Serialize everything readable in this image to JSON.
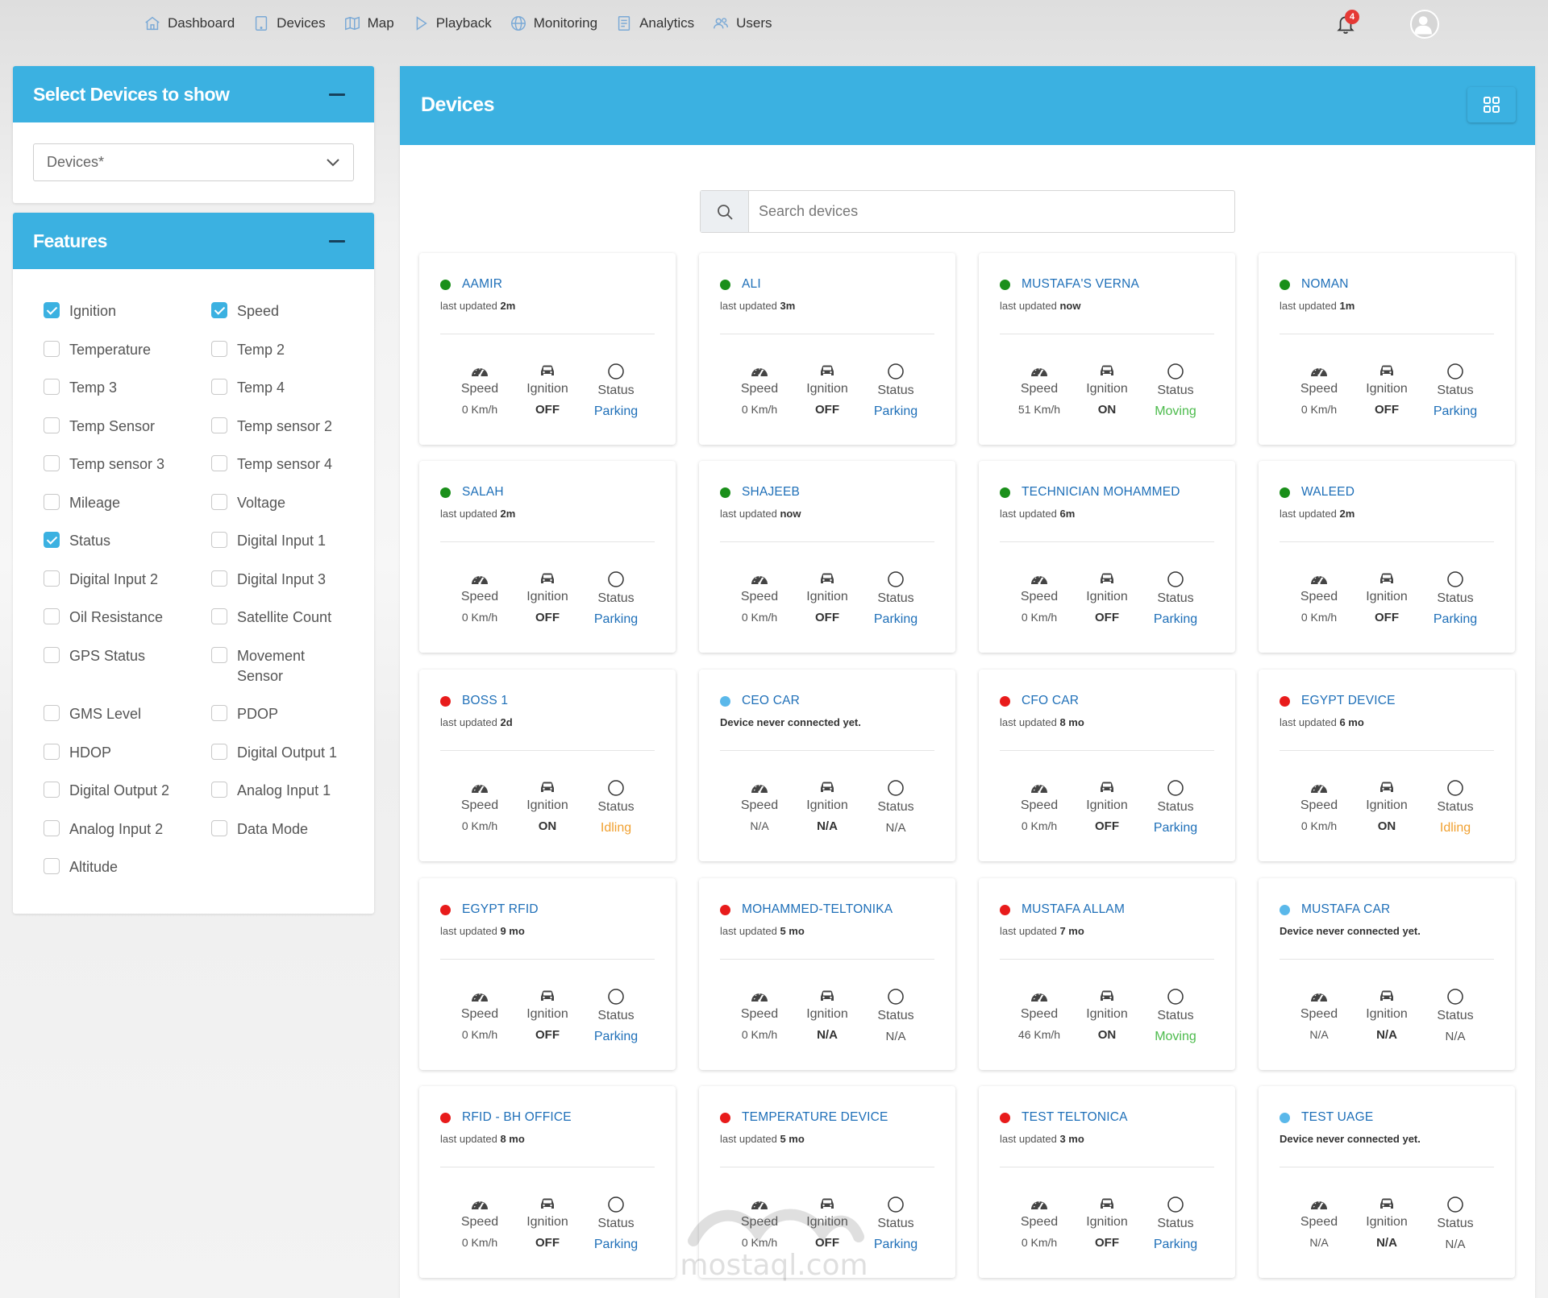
{
  "nav": {
    "items": [
      {
        "label": "Dashboard",
        "icon": "home-icon"
      },
      {
        "label": "Devices",
        "icon": "tablet-icon"
      },
      {
        "label": "Map",
        "icon": "map-icon"
      },
      {
        "label": "Playback",
        "icon": "play-icon"
      },
      {
        "label": "Monitoring",
        "icon": "globe-icon"
      },
      {
        "label": "Analytics",
        "icon": "document-icon"
      },
      {
        "label": "Users",
        "icon": "users-icon"
      }
    ],
    "notification_count": "4"
  },
  "select_panel": {
    "title": "Select Devices to show",
    "dropdown_value": "Devices*"
  },
  "features_panel": {
    "title": "Features",
    "items": [
      {
        "label": "Ignition",
        "checked": true
      },
      {
        "label": "Speed",
        "checked": true
      },
      {
        "label": "Temperature",
        "checked": false
      },
      {
        "label": "Temp 2",
        "checked": false
      },
      {
        "label": "Temp 3",
        "checked": false
      },
      {
        "label": "Temp 4",
        "checked": false
      },
      {
        "label": "Temp Sensor",
        "checked": false
      },
      {
        "label": "Temp sensor 2",
        "checked": false
      },
      {
        "label": "Temp sensor 3",
        "checked": false
      },
      {
        "label": "Temp sensor 4",
        "checked": false
      },
      {
        "label": "Mileage",
        "checked": false
      },
      {
        "label": "Voltage",
        "checked": false
      },
      {
        "label": "Status",
        "checked": true
      },
      {
        "label": "Digital Input 1",
        "checked": false
      },
      {
        "label": "Digital Input 2",
        "checked": false
      },
      {
        "label": "Digital Input 3",
        "checked": false
      },
      {
        "label": "Oil Resistance",
        "checked": false
      },
      {
        "label": "Satellite Count",
        "checked": false
      },
      {
        "label": "GPS Status",
        "checked": false
      },
      {
        "label": "Movement Sensor",
        "checked": false
      },
      {
        "label": "GMS Level",
        "checked": false
      },
      {
        "label": "PDOP",
        "checked": false
      },
      {
        "label": "HDOP",
        "checked": false
      },
      {
        "label": "Digital Output 1",
        "checked": false
      },
      {
        "label": "Digital Output 2",
        "checked": false
      },
      {
        "label": "Analog Input 1",
        "checked": false
      },
      {
        "label": "Analog Input 2",
        "checked": false
      },
      {
        "label": "Data Mode",
        "checked": false
      },
      {
        "label": "Altitude",
        "checked": false
      }
    ]
  },
  "devices_panel": {
    "title": "Devices",
    "search_placeholder": "Search devices",
    "labels": {
      "speed": "Speed",
      "ignition": "Ignition",
      "status": "Status",
      "last_updated": "last updated"
    }
  },
  "colors": {
    "online": "#1a8f1a",
    "offline": "#e81b1b",
    "never": "#5ab8ea",
    "accent": "#3bb1e1"
  },
  "devices": [
    {
      "name": "AAMIR",
      "dot": "online",
      "updated": "2m",
      "speed": "0 Km/h",
      "ignition": "OFF",
      "status": "Parking"
    },
    {
      "name": "ALI",
      "dot": "online",
      "updated": "3m",
      "speed": "0 Km/h",
      "ignition": "OFF",
      "status": "Parking"
    },
    {
      "name": "MUSTAFA'S VERNA",
      "dot": "online",
      "updated": "now",
      "speed": "51 Km/h",
      "ignition": "ON",
      "status": "Moving"
    },
    {
      "name": "NOMAN",
      "dot": "online",
      "updated": "1m",
      "speed": "0 Km/h",
      "ignition": "OFF",
      "status": "Parking"
    },
    {
      "name": "SALAH",
      "dot": "online",
      "updated": "2m",
      "speed": "0 Km/h",
      "ignition": "OFF",
      "status": "Parking"
    },
    {
      "name": "SHAJEEB",
      "dot": "online",
      "updated": "now",
      "speed": "0 Km/h",
      "ignition": "OFF",
      "status": "Parking"
    },
    {
      "name": "TECHNICIAN MOHAMMED",
      "dot": "online",
      "updated": "6m",
      "speed": "0 Km/h",
      "ignition": "OFF",
      "status": "Parking"
    },
    {
      "name": "WALEED",
      "dot": "online",
      "updated": "2m",
      "speed": "0 Km/h",
      "ignition": "OFF",
      "status": "Parking"
    },
    {
      "name": "BOSS 1",
      "dot": "offline",
      "updated": "2d",
      "speed": "0 Km/h",
      "ignition": "ON",
      "status": "Idling"
    },
    {
      "name": "CEO CAR",
      "dot": "never",
      "never_text": "Device never connected yet.",
      "speed": "N/A",
      "ignition": "N/A",
      "status": "N/A"
    },
    {
      "name": "CFO CAR",
      "dot": "offline",
      "updated": "8 mo",
      "speed": "0 Km/h",
      "ignition": "OFF",
      "status": "Parking"
    },
    {
      "name": "EGYPT DEVICE",
      "dot": "offline",
      "updated": "6 mo",
      "speed": "0 Km/h",
      "ignition": "ON",
      "status": "Idling"
    },
    {
      "name": "EGYPT RFID",
      "dot": "offline",
      "updated": "9 mo",
      "speed": "0 Km/h",
      "ignition": "OFF",
      "status": "Parking"
    },
    {
      "name": "MOHAMMED-TELTONIKA",
      "dot": "offline",
      "updated": "5 mo",
      "speed": "0 Km/h",
      "ignition": "N/A",
      "status": "N/A"
    },
    {
      "name": "MUSTAFA ALLAM",
      "dot": "offline",
      "updated": "7 mo",
      "speed": "46 Km/h",
      "ignition": "ON",
      "status": "Moving"
    },
    {
      "name": "MUSTAFA CAR",
      "dot": "never",
      "never_text": "Device never connected yet.",
      "speed": "N/A",
      "ignition": "N/A",
      "status": "N/A"
    },
    {
      "name": "RFID - BH OFFICE",
      "dot": "offline",
      "updated": "8 mo",
      "speed": "0 Km/h",
      "ignition": "OFF",
      "status": "Parking"
    },
    {
      "name": "TEMPERATURE DEVICE",
      "dot": "offline",
      "updated": "5 mo",
      "speed": "0 Km/h",
      "ignition": "OFF",
      "status": "Parking"
    },
    {
      "name": "TEST TELTONICA",
      "dot": "offline",
      "updated": "3 mo",
      "speed": "0 Km/h",
      "ignition": "OFF",
      "status": "Parking"
    },
    {
      "name": "TEST UAGE",
      "dot": "never",
      "never_text": "Device never connected yet.",
      "speed": "N/A",
      "ignition": "N/A",
      "status": "N/A"
    }
  ],
  "watermark": {
    "text": "mostaql.com"
  }
}
